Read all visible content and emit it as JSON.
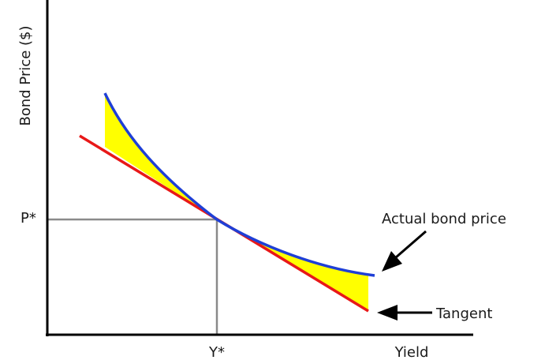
{
  "axes": {
    "y_label": "Bond Price ($)",
    "x_label": "Yield"
  },
  "markers": {
    "p_star": "P*",
    "y_star": "Y*"
  },
  "annotations": {
    "actual_price": "Actual bond price",
    "tangent": "Tangent"
  },
  "colors": {
    "actual_price_curve": "#1f3fd6",
    "tangent_line": "#e81818",
    "convexity_area": "#ffff00",
    "reference_lines": "#8a8a8a",
    "axes": "#000000",
    "arrows": "#000000"
  }
}
